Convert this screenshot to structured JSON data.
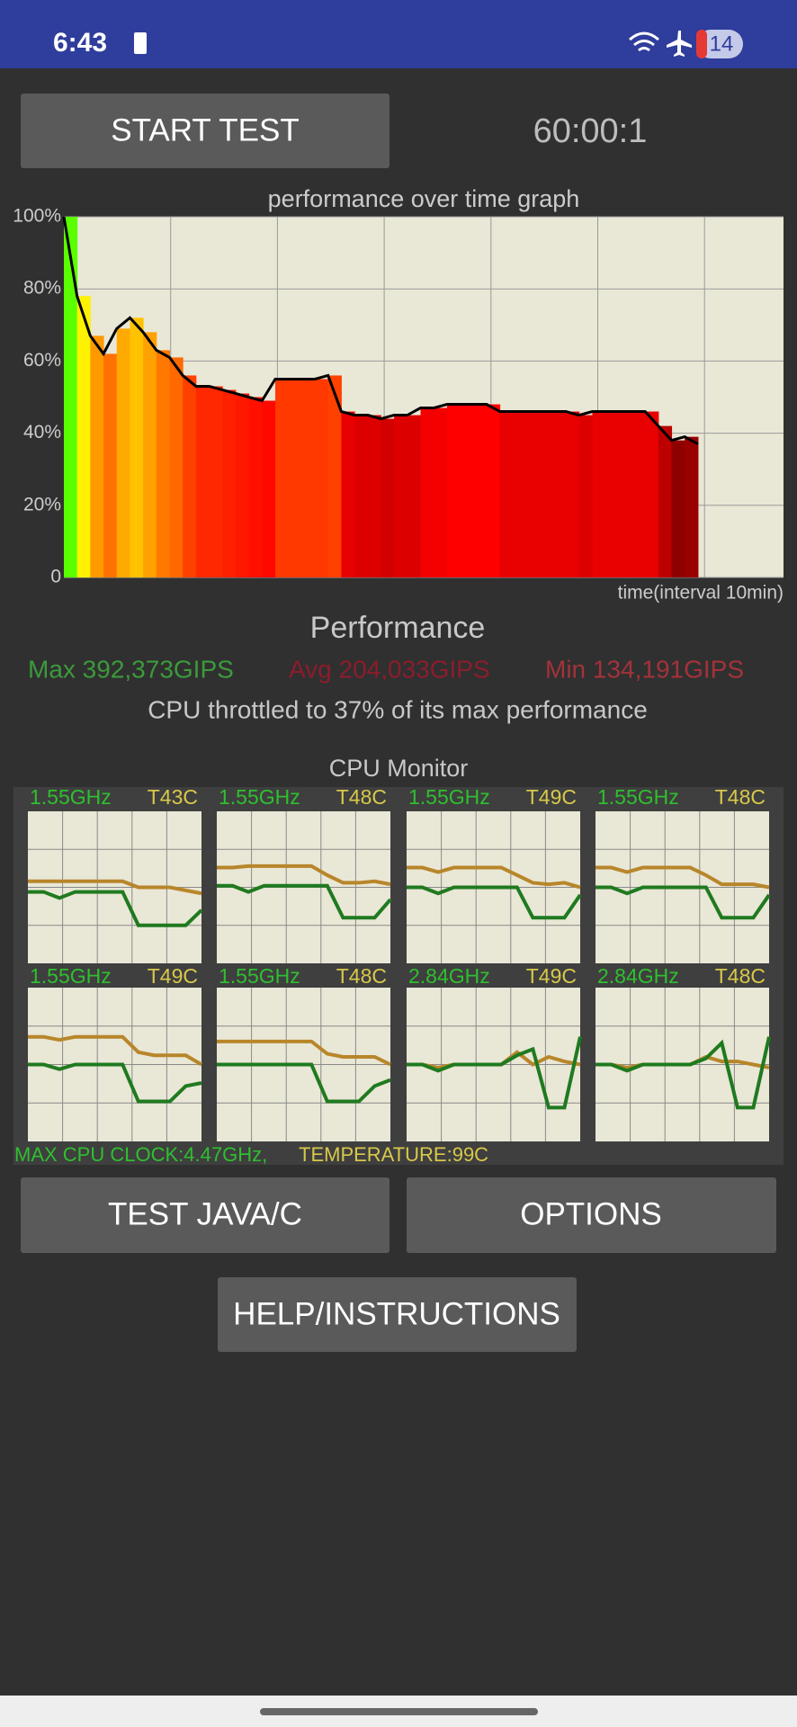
{
  "status_bar": {
    "time": "6:43",
    "badge": "14"
  },
  "start_button": "START TEST",
  "timer": "60:00:1",
  "chart_data": {
    "type": "area",
    "title": "performance over time graph",
    "x_label": "time(interval 10min)",
    "ylim": [
      0,
      100
    ],
    "yticks": [
      0,
      {
        "value": 20,
        "label": "20%"
      },
      {
        "value": 40,
        "label": "40%"
      },
      {
        "value": 60,
        "label": "60%"
      },
      {
        "value": 80,
        "label": "80%"
      },
      {
        "value": 100,
        "label": "100%"
      }
    ],
    "grid": true,
    "line_color": "#000000",
    "values": [
      100,
      78,
      67,
      62,
      69,
      72,
      68,
      63,
      61,
      56,
      53,
      53,
      52,
      51,
      50,
      49,
      55,
      55,
      55,
      55,
      56,
      46,
      45,
      45,
      44,
      45,
      45,
      47,
      47,
      48,
      48,
      48,
      48,
      46,
      46,
      46,
      46,
      46,
      46,
      45,
      46,
      46,
      46,
      46,
      46,
      42,
      38,
      39,
      37
    ]
  },
  "performance": {
    "title": "Performance",
    "max": "Max 392,373GIPS",
    "avg": "Avg 204,033GIPS",
    "min": "Min 134,191GIPS",
    "throttle": "CPU throttled to 37% of its max performance"
  },
  "cpu_monitor": {
    "title": "CPU Monitor",
    "freq_color": "#1f7a1f",
    "temp_color": "#b8862a",
    "cores": [
      {
        "freq": "1.55GHz",
        "temp": "T43C",
        "freq_line": [
          47,
          47,
          43,
          47,
          47,
          47,
          47,
          25,
          25,
          25,
          25,
          35
        ],
        "temp_line": [
          54,
          54,
          54,
          54,
          54,
          54,
          54,
          50,
          50,
          50,
          48,
          46
        ]
      },
      {
        "freq": "1.55GHz",
        "temp": "T48C",
        "freq_line": [
          51,
          51,
          47,
          51,
          51,
          51,
          51,
          51,
          30,
          30,
          30,
          42
        ],
        "temp_line": [
          63,
          63,
          64,
          64,
          64,
          64,
          64,
          58,
          53,
          53,
          54,
          52
        ]
      },
      {
        "freq": "1.55GHz",
        "temp": "T49C",
        "freq_line": [
          50,
          50,
          46,
          50,
          50,
          50,
          50,
          50,
          30,
          30,
          30,
          45
        ],
        "temp_line": [
          63,
          63,
          60,
          63,
          63,
          63,
          63,
          58,
          53,
          52,
          53,
          50
        ]
      },
      {
        "freq": "1.55GHz",
        "temp": "T48C",
        "freq_line": [
          50,
          50,
          46,
          50,
          50,
          50,
          50,
          50,
          30,
          30,
          30,
          45
        ],
        "temp_line": [
          63,
          63,
          60,
          63,
          63,
          63,
          63,
          58,
          52,
          52,
          52,
          50
        ]
      },
      {
        "freq": "1.55GHz",
        "temp": "T49C",
        "freq_line": [
          50,
          50,
          47,
          50,
          50,
          50,
          50,
          26,
          26,
          26,
          36,
          38
        ],
        "temp_line": [
          68,
          68,
          66,
          68,
          68,
          68,
          68,
          58,
          56,
          56,
          56,
          50
        ]
      },
      {
        "freq": "1.55GHz",
        "temp": "T48C",
        "freq_line": [
          50,
          50,
          50,
          50,
          50,
          50,
          50,
          26,
          26,
          26,
          36,
          40
        ],
        "temp_line": [
          65,
          65,
          65,
          65,
          65,
          65,
          65,
          57,
          55,
          55,
          55,
          50
        ]
      },
      {
        "freq": "2.84GHz",
        "temp": "T49C",
        "freq_line": [
          50,
          50,
          46,
          50,
          50,
          50,
          50,
          56,
          60,
          22,
          22,
          68
        ],
        "temp_line": [
          50,
          50,
          48,
          50,
          50,
          50,
          50,
          58,
          50,
          55,
          52,
          50
        ]
      },
      {
        "freq": "2.84GHz",
        "temp": "T48C",
        "freq_line": [
          50,
          50,
          46,
          50,
          50,
          50,
          50,
          54,
          64,
          22,
          22,
          68
        ],
        "temp_line": [
          50,
          50,
          48,
          50,
          50,
          50,
          50,
          55,
          52,
          52,
          50,
          48
        ]
      }
    ],
    "max_clock": "MAX CPU CLOCK:4.47GHz,",
    "temperature": "TEMPERATURE:99C"
  },
  "buttons": {
    "test": "TEST JAVA/C",
    "options": "OPTIONS",
    "help": "HELP/INSTRUCTIONS"
  }
}
